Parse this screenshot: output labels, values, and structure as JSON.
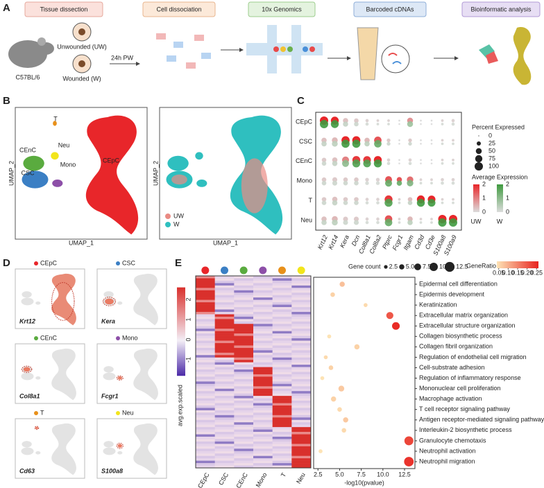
{
  "panel_a": {
    "label": "A",
    "steps": [
      "Tissue dissection",
      "Cell dissociation",
      "10x Genomics",
      "Barcoded cDNAs",
      "Bioinformatic analysis"
    ],
    "unwounded": "Unwounded (UW)",
    "wounded": "Wounded (W)",
    "strain": "C57BL/6",
    "time": "24h PW"
  },
  "panel_b": {
    "label": "B",
    "clusters": [
      "T",
      "CEnC",
      "Neu",
      "Mono",
      "CSC",
      "CEpC"
    ],
    "x_label": "UMAP_1",
    "y_label": "UMAP_2",
    "legend": [
      "UW",
      "W"
    ]
  },
  "panel_c": {
    "label": "C",
    "type": "dotplot",
    "rows": [
      "CEpC",
      "CSC",
      "CEnC",
      "Mono",
      "T",
      "Neu"
    ],
    "genes": [
      "Krt12",
      "Krt14",
      "Kera",
      "Dcn",
      "Col8a1",
      "Col8a2",
      "Ptprc",
      "Fcgr1",
      "Itgam",
      "Cd3d",
      "Cd3e",
      "S100a8",
      "S100a9"
    ],
    "percent": [
      [
        100,
        90,
        40,
        30,
        15,
        10,
        10,
        5,
        50,
        5,
        5,
        10,
        15
      ],
      [
        40,
        50,
        95,
        95,
        40,
        80,
        20,
        5,
        20,
        5,
        5,
        10,
        10
      ],
      [
        30,
        40,
        70,
        90,
        85,
        90,
        15,
        5,
        15,
        5,
        5,
        10,
        10
      ],
      [
        30,
        35,
        30,
        30,
        20,
        20,
        70,
        40,
        60,
        10,
        10,
        15,
        15
      ],
      [
        30,
        40,
        30,
        30,
        15,
        15,
        90,
        10,
        30,
        90,
        85,
        10,
        10
      ],
      [
        40,
        50,
        35,
        35,
        15,
        15,
        80,
        10,
        40,
        10,
        10,
        100,
        100
      ]
    ],
    "expression": [
      [
        2,
        2,
        0.3,
        0.2,
        0.1,
        0.1,
        0.1,
        0,
        0.8,
        0,
        0,
        0.1,
        0.1
      ],
      [
        0.3,
        0.4,
        2,
        2,
        0.4,
        1.5,
        0.2,
        0,
        0.2,
        0,
        0,
        0.1,
        0.1
      ],
      [
        0.2,
        0.3,
        1,
        1.8,
        1.8,
        2,
        0.1,
        0,
        0.1,
        0,
        0,
        0.1,
        0.1
      ],
      [
        0.2,
        0.2,
        0.2,
        0.2,
        0.1,
        0.1,
        1.5,
        1.5,
        1.2,
        0.1,
        0.1,
        0.1,
        0.1
      ],
      [
        0.2,
        0.3,
        0.2,
        0.2,
        0.1,
        0.1,
        1.8,
        0.1,
        0.3,
        2,
        2,
        0.1,
        0.1
      ],
      [
        0.3,
        0.4,
        0.2,
        0.2,
        0.1,
        0.1,
        1.5,
        0.1,
        0.4,
        0.1,
        0.1,
        2,
        2
      ]
    ],
    "size_title": "Percent Expressed",
    "size_legend": [
      0,
      25,
      50,
      75,
      100
    ],
    "color_title": "Average Expression",
    "color_ticks": [
      2,
      1,
      0
    ],
    "groups": [
      "UW",
      "W"
    ],
    "group_colors": [
      "#e8262a",
      "#3f9a3f"
    ]
  },
  "panel_d": {
    "label": "D",
    "clusters": [
      "CEpC",
      "CSC",
      "CEnC",
      "Mono",
      "T",
      "Neu"
    ],
    "genes": [
      "Krt12",
      "Kera",
      "Col8a1",
      "Fcgr1",
      "Cd63",
      "S100a8"
    ],
    "colors": [
      "#e8262a",
      "#3b7fc4",
      "#5aab3f",
      "#8d4fa8",
      "#e8901a",
      "#f2e51c"
    ]
  },
  "panel_e": {
    "label": "E",
    "heatmap": {
      "columns": [
        "CEpC",
        "CSC",
        "CEnC",
        "Mono",
        "T",
        "Neu"
      ],
      "colorbar_label": "avg.exp.scaled",
      "colorbar_ticks": [
        2,
        1,
        0,
        -1
      ],
      "clim": [
        -1.8,
        2.6
      ]
    },
    "enrichment": {
      "type": "scatter",
      "terms": [
        "Epidermal cell differentiation",
        "Epidermis development",
        "Keratinization",
        "Extracellular matrix organization",
        "Extracellular structure organization",
        "Collagen biosynthetic process",
        "Collagen fibril organization",
        "Regulation of endothelial cell migration",
        "Cell-substrate adhesion",
        "Regulation of inflammatory response",
        "Mononuclear cell proliferation",
        "Macrophage activation",
        "T cell receptor signaling pathway",
        "Antigen receptor-mediated signaling pathway",
        "Interleukin-2 biosynthetic process",
        "Granulocyte chemotaxis",
        "Neutrophil activation",
        "Neutrophil migration"
      ],
      "x": [
        5.3,
        4.2,
        8.0,
        10.8,
        11.5,
        3.8,
        7.0,
        3.4,
        4.0,
        3.0,
        5.2,
        4.3,
        5.0,
        5.7,
        5.5,
        13.0,
        2.8,
        13.0
      ],
      "gene_count": [
        5,
        4,
        3,
        8,
        9,
        3,
        5,
        3,
        4,
        3,
        6,
        5,
        4,
        5,
        4,
        11,
        3,
        12
      ],
      "gene_ratio": [
        0.08,
        0.06,
        0.05,
        0.2,
        0.25,
        0.04,
        0.06,
        0.05,
        0.06,
        0.04,
        0.07,
        0.06,
        0.05,
        0.07,
        0.05,
        0.22,
        0.04,
        0.24
      ],
      "x_label": "-log10(pvalue)",
      "xlim": [
        2,
        13.7
      ],
      "xticks": [
        2.5,
        {
          "value": 5,
          "label": "5.0"
        },
        7.5,
        {
          "value": 10,
          "label": "10.0"
        },
        12.5
      ],
      "size_title": "Gene count",
      "size_legend": [
        2.5,
        {
          "value": 5,
          "label": "5.0"
        },
        7.5,
        {
          "value": 10,
          "label": "10.0"
        },
        12.5
      ],
      "color_title": "GeneRatio",
      "color_ticks": [
        0.05,
        {
          "value": 0.1,
          "label": "0.10"
        },
        0.15,
        {
          "value": 0.2,
          "label": "0.20"
        },
        0.25
      ],
      "clim": [
        0.04,
        0.26
      ]
    }
  }
}
